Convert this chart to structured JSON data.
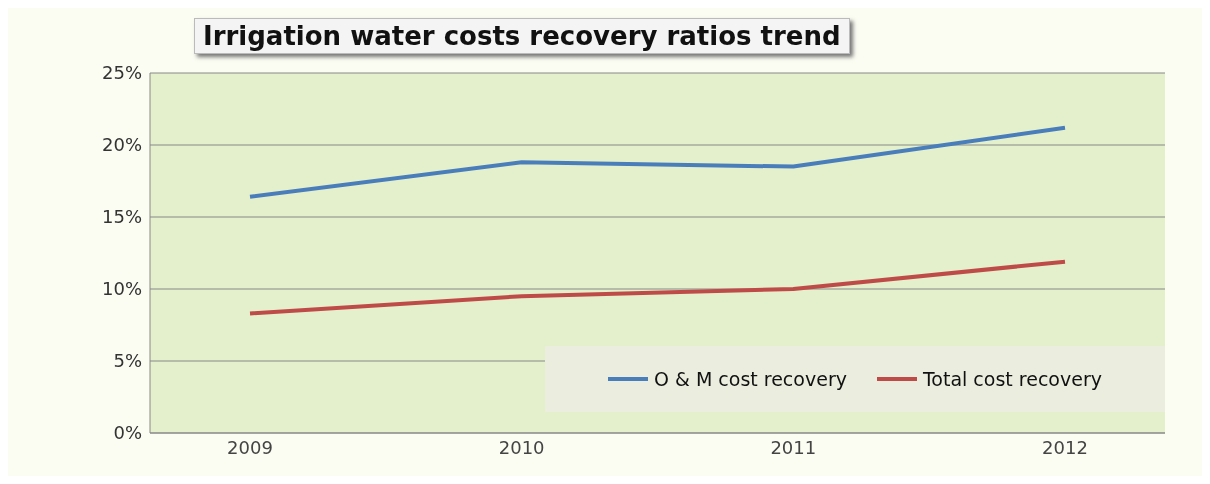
{
  "chart_data": {
    "type": "line",
    "title": "Irrigation water costs recovery ratios trend",
    "categories": [
      "2009",
      "2010",
      "2011",
      "2012"
    ],
    "series": [
      {
        "name": "O & M cost recovery",
        "color": "#4a7ebb",
        "values": [
          16.4,
          18.8,
          18.5,
          21.2
        ]
      },
      {
        "name": "Total cost recovery",
        "color": "#be4b48",
        "values": [
          8.3,
          9.5,
          10.0,
          11.9
        ]
      }
    ],
    "ylim": [
      0,
      25
    ],
    "yticks": [
      {
        "value": 0,
        "label": "0%"
      },
      {
        "value": 5,
        "label": "5%"
      },
      {
        "value": 10,
        "label": "10%"
      },
      {
        "value": 15,
        "label": "15%"
      },
      {
        "value": 20,
        "label": "20%"
      },
      {
        "value": 25,
        "label": "25%"
      }
    ],
    "grid": "y",
    "legend": "bottom right",
    "marker": "none",
    "line_style": "solid"
  }
}
